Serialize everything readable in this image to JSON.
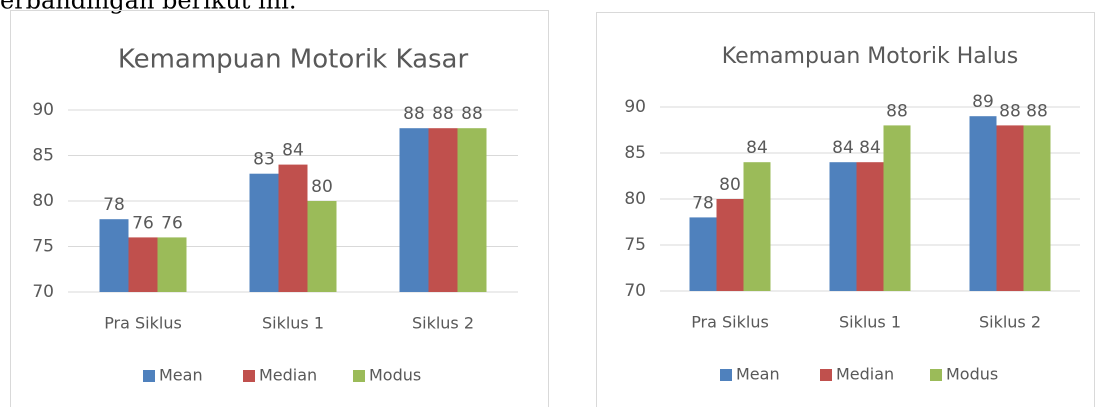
{
  "text": "erbandingan berikut ini.",
  "chart_data": [
    {
      "type": "bar",
      "title": "Kemampuan Motorik Kasar",
      "categories": [
        "Pra Siklus",
        "Siklus 1",
        "Siklus 2"
      ],
      "series": [
        {
          "name": "Mean",
          "color": "#4f81bd",
          "values": [
            78,
            83,
            88
          ]
        },
        {
          "name": "Median",
          "color": "#c0504d",
          "values": [
            76,
            84,
            88
          ]
        },
        {
          "name": "Modus",
          "color": "#9bbb59",
          "values": [
            76,
            80,
            88
          ]
        }
      ],
      "ylim": [
        70,
        90
      ],
      "yticks": [
        70,
        75,
        80,
        85,
        90
      ],
      "grid": true,
      "legend": "bottom"
    },
    {
      "type": "bar",
      "title": "Kemampuan Motorik Halus",
      "categories": [
        "Pra Siklus",
        "Siklus 1",
        "Siklus 2"
      ],
      "series": [
        {
          "name": "Mean",
          "color": "#4f81bd",
          "values": [
            78,
            84,
            89
          ]
        },
        {
          "name": "Median",
          "color": "#c0504d",
          "values": [
            80,
            84,
            88
          ]
        },
        {
          "name": "Modus",
          "color": "#9bbb59",
          "values": [
            84,
            88,
            88
          ]
        }
      ],
      "ylim": [
        70,
        90
      ],
      "yticks": [
        70,
        75,
        80,
        85,
        90
      ],
      "grid": true,
      "legend": "bottom"
    }
  ]
}
